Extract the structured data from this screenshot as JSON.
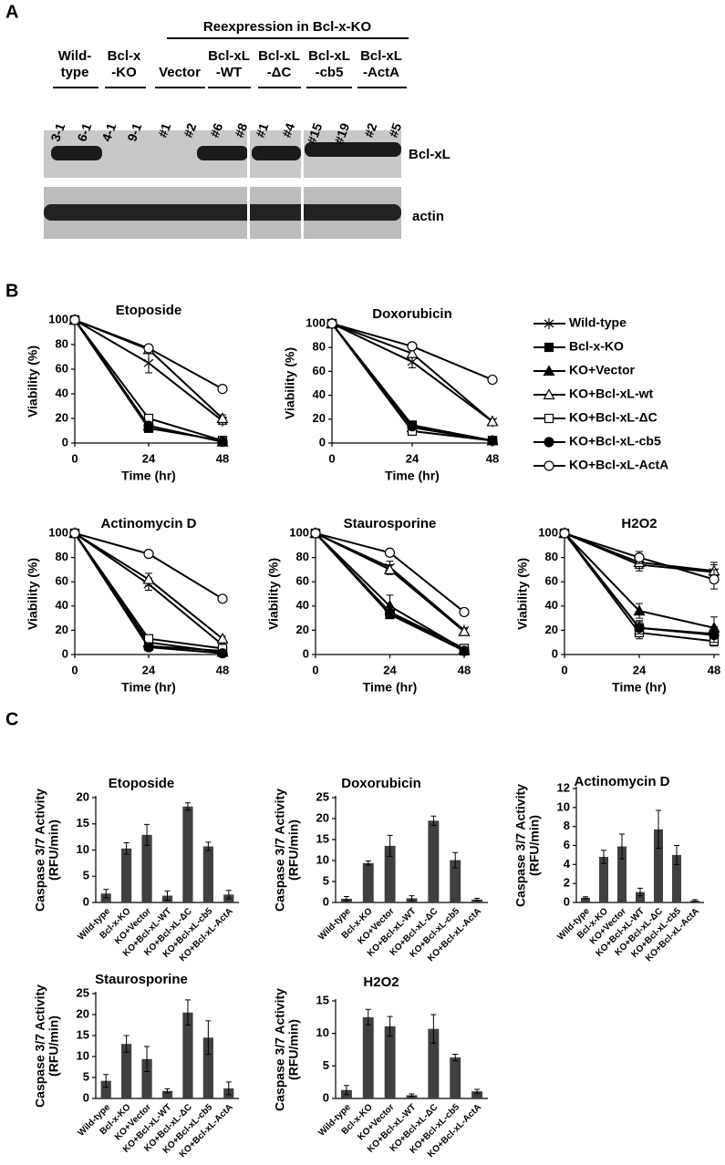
{
  "panel_labels": [
    "A",
    "B",
    "C"
  ],
  "blot": {
    "header": "Reexpression in Bcl-x-KO",
    "groups": [
      [
        "Wild-",
        "type"
      ],
      [
        "Bcl-x",
        "-KO"
      ],
      [
        "Vector"
      ],
      [
        "Bcl-xL",
        "-WT"
      ],
      [
        "Bcl-xL",
        "-ΔC"
      ],
      [
        "Bcl-xL",
        "-cb5"
      ],
      [
        "Bcl-xL",
        "-ActA"
      ]
    ],
    "lanes": [
      "3-1",
      "6-1",
      "4-1",
      "9-1",
      "#1",
      "#2",
      "#6",
      "#8",
      "#1",
      "#4",
      "#15",
      "#19",
      "#2",
      "#5"
    ],
    "rows": [
      "Bcl-xL",
      "actin"
    ]
  },
  "chart_data": [
    {
      "type": "line",
      "title": "Etoposide",
      "xlabel": "Time (hr)",
      "ylabel": "Viability (%)",
      "x": [
        0,
        24,
        48
      ],
      "xlim": [
        0,
        48
      ],
      "xticks": [
        0,
        24,
        48
      ],
      "ylim": [
        0,
        100
      ],
      "yticks": [
        0,
        20,
        40,
        60,
        80,
        100
      ],
      "series": [
        {
          "marker": "asterisk",
          "filled": false,
          "values": [
            100,
            65,
            18
          ],
          "errors": [
            0,
            8,
            3
          ]
        },
        {
          "marker": "square",
          "filled": true,
          "values": [
            100,
            12,
            2
          ],
          "errors": [
            0,
            2,
            1
          ]
        },
        {
          "marker": "triangle",
          "filled": true,
          "values": [
            100,
            14,
            1
          ],
          "errors": [
            0,
            2,
            1
          ]
        },
        {
          "marker": "triangle",
          "filled": false,
          "values": [
            100,
            76,
            20
          ],
          "errors": [
            0,
            3,
            3
          ]
        },
        {
          "marker": "square",
          "filled": false,
          "values": [
            100,
            20,
            2
          ],
          "errors": [
            0,
            2,
            1
          ]
        },
        {
          "marker": "circle",
          "filled": true,
          "values": [
            100,
            14,
            1
          ],
          "errors": [
            0,
            2,
            1
          ]
        },
        {
          "marker": "circle",
          "filled": false,
          "values": [
            100,
            77,
            44
          ],
          "errors": [
            0,
            2,
            2
          ]
        }
      ]
    },
    {
      "type": "line",
      "title": "Doxorubicin",
      "xlabel": "Time (hr)",
      "ylabel": "Viability (%)",
      "x": [
        0,
        24,
        48
      ],
      "xlim": [
        0,
        48
      ],
      "xticks": [
        0,
        24,
        48
      ],
      "ylim": [
        0,
        100
      ],
      "yticks": [
        0,
        20,
        40,
        60,
        80,
        100
      ],
      "legend": "right",
      "series": [
        {
          "name": "Wild-type",
          "marker": "asterisk",
          "filled": false,
          "values": [
            100,
            68,
            18
          ],
          "errors": [
            0,
            5,
            2
          ]
        },
        {
          "name": "Bcl-x-KO",
          "marker": "square",
          "filled": true,
          "values": [
            100,
            15,
            2
          ],
          "errors": [
            0,
            2,
            1
          ]
        },
        {
          "name": "KO+Vector",
          "marker": "triangle",
          "filled": true,
          "values": [
            100,
            13,
            2
          ],
          "errors": [
            0,
            2,
            1
          ]
        },
        {
          "name": "KO+Bcl-xL-wt",
          "marker": "triangle",
          "filled": false,
          "values": [
            100,
            75,
            18
          ],
          "errors": [
            0,
            3,
            2
          ]
        },
        {
          "name": "KO+Bcl-xL-ΔC",
          "marker": "square",
          "filled": false,
          "values": [
            100,
            10,
            2
          ],
          "errors": [
            0,
            2,
            1
          ]
        },
        {
          "name": "KO+Bcl-xL-cb5",
          "marker": "circle",
          "filled": true,
          "values": [
            100,
            14,
            2
          ],
          "errors": [
            0,
            2,
            1
          ]
        },
        {
          "name": "KO+Bcl-xL-ActA",
          "marker": "circle",
          "filled": false,
          "values": [
            100,
            81,
            53
          ],
          "errors": [
            0,
            2,
            2
          ]
        }
      ]
    },
    {
      "type": "line",
      "title": "Actinomycin D",
      "xlabel": "Time (hr)",
      "ylabel": "Viability (%)",
      "x": [
        0,
        24,
        48
      ],
      "xlim": [
        0,
        48
      ],
      "xticks": [
        0,
        24,
        48
      ],
      "ylim": [
        0,
        100
      ],
      "yticks": [
        0,
        20,
        40,
        60,
        80,
        100
      ],
      "series": [
        {
          "marker": "asterisk",
          "filled": false,
          "values": [
            100,
            58,
            8
          ],
          "errors": [
            0,
            5,
            2
          ]
        },
        {
          "marker": "square",
          "filled": true,
          "values": [
            100,
            7,
            3
          ],
          "errors": [
            0,
            2,
            1
          ]
        },
        {
          "marker": "triangle",
          "filled": true,
          "values": [
            100,
            10,
            2
          ],
          "errors": [
            0,
            2,
            1
          ]
        },
        {
          "marker": "triangle",
          "filled": false,
          "values": [
            100,
            62,
            13
          ],
          "errors": [
            0,
            5,
            2
          ]
        },
        {
          "marker": "square",
          "filled": false,
          "values": [
            100,
            13,
            5
          ],
          "errors": [
            0,
            3,
            1
          ]
        },
        {
          "marker": "circle",
          "filled": true,
          "values": [
            100,
            6,
            1
          ],
          "errors": [
            0,
            2,
            1
          ]
        },
        {
          "marker": "circle",
          "filled": false,
          "values": [
            100,
            83,
            46
          ],
          "errors": [
            0,
            2,
            2
          ]
        }
      ]
    },
    {
      "type": "line",
      "title": "Staurosporine",
      "xlabel": "Time (hr)",
      "ylabel": "Viability (%)",
      "x": [
        0,
        24,
        48
      ],
      "xlim": [
        0,
        48
      ],
      "xticks": [
        0,
        24,
        48
      ],
      "ylim": [
        0,
        100
      ],
      "yticks": [
        0,
        20,
        40,
        60,
        80,
        100
      ],
      "series": [
        {
          "marker": "asterisk",
          "filled": false,
          "values": [
            100,
            72,
            20
          ],
          "errors": [
            0,
            5,
            2
          ]
        },
        {
          "marker": "square",
          "filled": true,
          "values": [
            100,
            33,
            3
          ],
          "errors": [
            0,
            3,
            2
          ]
        },
        {
          "marker": "triangle",
          "filled": true,
          "values": [
            100,
            40,
            4
          ],
          "errors": [
            0,
            9,
            2
          ]
        },
        {
          "marker": "triangle",
          "filled": false,
          "values": [
            100,
            70,
            19
          ],
          "errors": [
            0,
            4,
            2
          ]
        },
        {
          "marker": "square",
          "filled": false,
          "values": [
            100,
            35,
            5
          ],
          "errors": [
            0,
            3,
            2
          ]
        },
        {
          "marker": "circle",
          "filled": true,
          "values": [
            100,
            34,
            3
          ],
          "errors": [
            0,
            3,
            2
          ]
        },
        {
          "marker": "circle",
          "filled": false,
          "values": [
            100,
            84,
            35
          ],
          "errors": [
            0,
            2,
            2
          ]
        }
      ]
    },
    {
      "type": "line",
      "title": "H2O2",
      "xlabel": "Time (hr)",
      "ylabel": "Viability (%)",
      "x": [
        0,
        24,
        48
      ],
      "xlim": [
        0,
        48
      ],
      "xticks": [
        0,
        24,
        48
      ],
      "ylim": [
        0,
        100
      ],
      "yticks": [
        0,
        20,
        40,
        60,
        80,
        100
      ],
      "series": [
        {
          "marker": "asterisk",
          "filled": false,
          "values": [
            100,
            74,
            68
          ],
          "errors": [
            0,
            5,
            8
          ]
        },
        {
          "marker": "square",
          "filled": true,
          "values": [
            100,
            22,
            17
          ],
          "errors": [
            0,
            6,
            6
          ]
        },
        {
          "marker": "triangle",
          "filled": true,
          "values": [
            100,
            36,
            22
          ],
          "errors": [
            0,
            6,
            9
          ]
        },
        {
          "marker": "triangle",
          "filled": false,
          "values": [
            100,
            76,
            69
          ],
          "errors": [
            0,
            5,
            5
          ]
        },
        {
          "marker": "square",
          "filled": false,
          "values": [
            100,
            18,
            11
          ],
          "errors": [
            0,
            5,
            4
          ]
        },
        {
          "marker": "circle",
          "filled": true,
          "values": [
            100,
            22,
            16
          ],
          "errors": [
            0,
            5,
            6
          ]
        },
        {
          "marker": "circle",
          "filled": false,
          "values": [
            100,
            80,
            62
          ],
          "errors": [
            0,
            5,
            8
          ]
        }
      ]
    },
    {
      "type": "bar",
      "title": "Etoposide",
      "ylabel": [
        "Caspase 3/7 Activity",
        "(RFU/min)"
      ],
      "color": "#404040",
      "categories": [
        "Wild-type",
        "Bcl-x-KO",
        "KO+Vector",
        "KO+Bcl-xL-WT",
        "KO+Bcl-xL-ΔC",
        "KO+Bcl-xL-cb5",
        "KO+Bcl-xL-ActA"
      ],
      "values": [
        1.7,
        10.3,
        12.9,
        1.3,
        18.3,
        10.7,
        1.5
      ],
      "errors": [
        0.8,
        1.1,
        2,
        0.9,
        0.7,
        0.8,
        0.8
      ],
      "ylim": [
        0,
        20
      ],
      "yticks": [
        0,
        5,
        10,
        15,
        20
      ]
    },
    {
      "type": "bar",
      "title": "Doxorubicin",
      "ylabel": [
        "Caspase 3/7 Activity",
        "(RFU/min)"
      ],
      "color": "#404040",
      "categories": [
        "Wild-type",
        "Bcl-x-KO",
        "KO+Vector",
        "KO+Bcl-xL-WT",
        "KO+Bcl-xL-ΔC",
        "KO+Bcl-xL-cb5",
        "KO+Bcl-xL-ActA"
      ],
      "values": [
        0.9,
        9.4,
        13.5,
        1.0,
        19.5,
        10.1,
        0.7
      ],
      "errors": [
        0.5,
        0.5,
        2.5,
        0.6,
        1.1,
        1.8,
        0.3
      ],
      "ylim": [
        0,
        25
      ],
      "yticks": [
        0,
        5,
        10,
        15,
        20,
        25
      ]
    },
    {
      "type": "bar",
      "title": "Actinomycin D",
      "ylabel": [
        "Caspase 3/7 Activity",
        "(RFU/min)"
      ],
      "color": "#404040",
      "categories": [
        "Wild-type",
        "Bcl-x-KO",
        "KO+Vector",
        "KO+Bcl-xL-WT",
        "KO+Bcl-xL-ΔC",
        "KO+Bcl-xL-cb5",
        "KO+Bcl-xL-ActA"
      ],
      "values": [
        0.5,
        4.8,
        5.9,
        1.1,
        7.7,
        5.0,
        0.2
      ],
      "errors": [
        0.1,
        0.7,
        1.3,
        0.4,
        2,
        1,
        0.1
      ],
      "ylim": [
        0,
        12
      ],
      "yticks": [
        0,
        2,
        4,
        6,
        8,
        10,
        12
      ]
    },
    {
      "type": "bar",
      "title": "Staurosporine",
      "ylabel": [
        "Caspase 3/7 Activity",
        "(RFU/min)"
      ],
      "color": "#404040",
      "categories": [
        "Wild-type",
        "Bcl-x-KO",
        "KO+Vector",
        "KO+Bcl-xL-WT",
        "KO+Bcl-xL-ΔC",
        "KO+Bcl-xL-cb5",
        "KO+Bcl-xL-ActA"
      ],
      "values": [
        4.2,
        13,
        9.4,
        1.8,
        20.5,
        14.5,
        2.4
      ],
      "errors": [
        1.5,
        2,
        3,
        0.5,
        3,
        4,
        1.5
      ],
      "ylim": [
        0,
        25
      ],
      "yticks": [
        0,
        5,
        10,
        15,
        20,
        25
      ]
    },
    {
      "type": "bar",
      "title": "H2O2",
      "ylabel": [
        "Caspase 3/7 Activity",
        "(RFU/min)"
      ],
      "color": "#404040",
      "categories": [
        "Wild-type",
        "Bcl-x-KO",
        "KO+Vector",
        "KO+Bcl-xL-WT",
        "KO+Bcl-xL-ΔC",
        "KO+Bcl-xL-cb5",
        "KO+Bcl-xL-ActA"
      ],
      "values": [
        1.3,
        12.5,
        11.1,
        0.5,
        10.7,
        6.3,
        1.1
      ],
      "errors": [
        0.7,
        1.2,
        1.5,
        0.2,
        2.2,
        0.5,
        0.3
      ],
      "ylim": [
        0,
        15
      ],
      "yticks": [
        0,
        5,
        10,
        15
      ]
    }
  ]
}
